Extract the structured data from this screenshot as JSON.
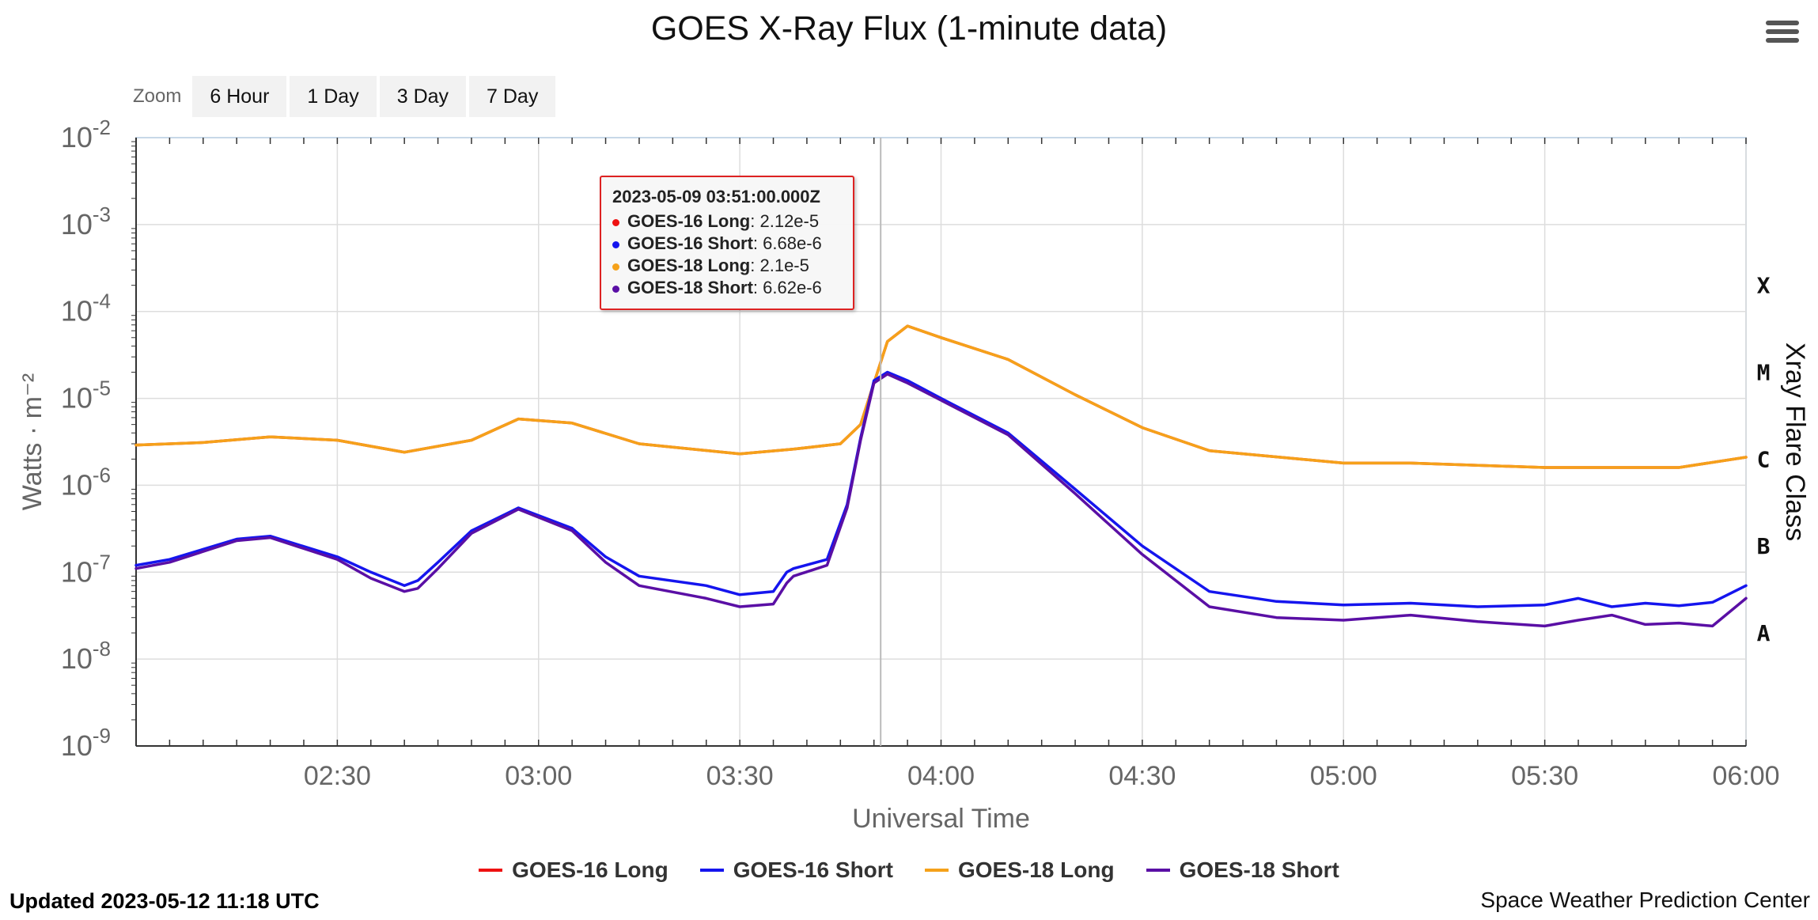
{
  "header": {
    "title": "GOES X-Ray Flux (1-minute data)"
  },
  "zoom": {
    "label": "Zoom",
    "buttons": [
      "6 Hour",
      "1 Day",
      "3 Day",
      "7 Day"
    ]
  },
  "tooltip": {
    "time": "2023-05-09 03:51:00.000Z",
    "rows": [
      {
        "name": "GOES-16 Long",
        "value": "2.12e-5",
        "color": "#ee1111"
      },
      {
        "name": "GOES-16 Short",
        "value": "6.68e-6",
        "color": "#1515ee"
      },
      {
        "name": "GOES-18 Long",
        "value": "2.1e-5",
        "color": "#f5a11a"
      },
      {
        "name": "GOES-18 Short",
        "value": "6.62e-6",
        "color": "#5a0fa5"
      }
    ]
  },
  "footer": {
    "updated": "Updated 2023-05-12 11:18 UTC",
    "credit": "Space Weather Prediction Center"
  },
  "chart_data": {
    "type": "line",
    "xlabel": "Universal Time",
    "ylabel": "Watts · m⁻²",
    "y2label": "Xray Flare Class",
    "yscale": "log",
    "ylim": [
      1e-09,
      0.01
    ],
    "xlim": [
      "02:00",
      "06:00"
    ],
    "x_ticks": [
      "02:30",
      "03:00",
      "03:30",
      "04:00",
      "04:30",
      "05:00",
      "05:30",
      "06:00"
    ],
    "y_ticks": [
      "10-9",
      "10-8",
      "10-7",
      "10-6",
      "10-5",
      "10-4",
      "10-3",
      "10-2"
    ],
    "flare_classes": [
      {
        "label": "X",
        "flux": 0.0002
      },
      {
        "label": "M",
        "flux": 2e-05
      },
      {
        "label": "C",
        "flux": 2e-06
      },
      {
        "label": "B",
        "flux": 2e-07
      },
      {
        "label": "A",
        "flux": 2e-08
      }
    ],
    "crosshair_time": "03:51",
    "legend_position": "bottom",
    "series": [
      {
        "name": "GOES-16 Long",
        "color": "#ee1111",
        "x": [
          "02:00",
          "02:10",
          "02:20",
          "02:30",
          "02:40",
          "02:50",
          "02:57",
          "03:05",
          "03:15",
          "03:30",
          "03:38",
          "03:45",
          "03:48",
          "03:50",
          "03:52",
          "03:55",
          "04:00",
          "04:10",
          "04:20",
          "04:30",
          "04:40",
          "05:00",
          "05:10",
          "05:30",
          "05:50",
          "06:00"
        ],
        "y": [
          2.9e-06,
          3.1e-06,
          3.6e-06,
          3.3e-06,
          2.4e-06,
          3.3e-06,
          5.8e-06,
          5.2e-06,
          3e-06,
          2.3e-06,
          2.6e-06,
          3e-06,
          5e-06,
          1.5e-05,
          4.5e-05,
          6.8e-05,
          5e-05,
          2.8e-05,
          1.1e-05,
          4.6e-06,
          2.5e-06,
          1.8e-06,
          1.8e-06,
          1.6e-06,
          1.6e-06,
          2.1e-06
        ]
      },
      {
        "name": "GOES-16 Short",
        "color": "#1515ee",
        "x": [
          "02:00",
          "02:05",
          "02:15",
          "02:20",
          "02:30",
          "02:35",
          "02:40",
          "02:42",
          "02:45",
          "02:50",
          "02:57",
          "03:05",
          "03:10",
          "03:15",
          "03:25",
          "03:30",
          "03:35",
          "03:37",
          "03:38",
          "03:43",
          "03:46",
          "03:48",
          "03:50",
          "03:52",
          "03:55",
          "04:00",
          "04:10",
          "04:20",
          "04:30",
          "04:40",
          "04:50",
          "05:00",
          "05:10",
          "05:20",
          "05:30",
          "05:35",
          "05:40",
          "05:45",
          "05:50",
          "05:55",
          "06:00"
        ],
        "y": [
          1.2e-07,
          1.4e-07,
          2.4e-07,
          2.6e-07,
          1.5e-07,
          1e-07,
          7e-08,
          8e-08,
          1.3e-07,
          3e-07,
          5.5e-07,
          3.2e-07,
          1.5e-07,
          9e-08,
          7e-08,
          5.5e-08,
          6e-08,
          1e-07,
          1.1e-07,
          1.4e-07,
          6e-07,
          3.5e-06,
          1.6e-05,
          2e-05,
          1.6e-05,
          1e-05,
          4e-06,
          9e-07,
          2e-07,
          6e-08,
          4.6e-08,
          4.2e-08,
          4.4e-08,
          4e-08,
          4.2e-08,
          5e-08,
          4e-08,
          4.4e-08,
          4.1e-08,
          4.5e-08,
          7e-08
        ]
      },
      {
        "name": "GOES-18 Long",
        "color": "#f5a11a",
        "x": [
          "02:00",
          "02:10",
          "02:20",
          "02:30",
          "02:40",
          "02:50",
          "02:57",
          "03:05",
          "03:15",
          "03:30",
          "03:38",
          "03:45",
          "03:48",
          "03:50",
          "03:52",
          "03:55",
          "04:00",
          "04:10",
          "04:20",
          "04:30",
          "04:40",
          "05:00",
          "05:10",
          "05:30",
          "05:50",
          "06:00"
        ],
        "y": [
          2.9e-06,
          3.1e-06,
          3.6e-06,
          3.3e-06,
          2.4e-06,
          3.3e-06,
          5.8e-06,
          5.2e-06,
          3e-06,
          2.3e-06,
          2.6e-06,
          3e-06,
          5e-06,
          1.5e-05,
          4.5e-05,
          6.8e-05,
          5e-05,
          2.8e-05,
          1.1e-05,
          4.6e-06,
          2.5e-06,
          1.8e-06,
          1.8e-06,
          1.6e-06,
          1.6e-06,
          2.1e-06
        ]
      },
      {
        "name": "GOES-18 Short",
        "color": "#5a0fa5",
        "x": [
          "02:00",
          "02:05",
          "02:15",
          "02:20",
          "02:30",
          "02:35",
          "02:40",
          "02:42",
          "02:45",
          "02:50",
          "02:57",
          "03:05",
          "03:10",
          "03:15",
          "03:25",
          "03:30",
          "03:35",
          "03:37",
          "03:38",
          "03:43",
          "03:46",
          "03:48",
          "03:50",
          "03:52",
          "03:55",
          "04:00",
          "04:10",
          "04:20",
          "04:30",
          "04:40",
          "04:50",
          "05:00",
          "05:10",
          "05:20",
          "05:30",
          "05:35",
          "05:40",
          "05:45",
          "05:50",
          "05:55",
          "06:00"
        ],
        "y": [
          1.1e-07,
          1.3e-07,
          2.3e-07,
          2.5e-07,
          1.4e-07,
          8.5e-08,
          6e-08,
          6.5e-08,
          1.1e-07,
          2.8e-07,
          5.3e-07,
          3e-07,
          1.3e-07,
          7e-08,
          5e-08,
          4e-08,
          4.3e-08,
          7.5e-08,
          9e-08,
          1.2e-07,
          5.5e-07,
          3.3e-06,
          1.5e-05,
          1.9e-05,
          1.5e-05,
          9.5e-06,
          3.8e-06,
          8e-07,
          1.6e-07,
          4e-08,
          3e-08,
          2.8e-08,
          3.2e-08,
          2.7e-08,
          2.4e-08,
          2.8e-08,
          3.2e-08,
          2.5e-08,
          2.6e-08,
          2.4e-08,
          5e-08
        ]
      }
    ]
  }
}
